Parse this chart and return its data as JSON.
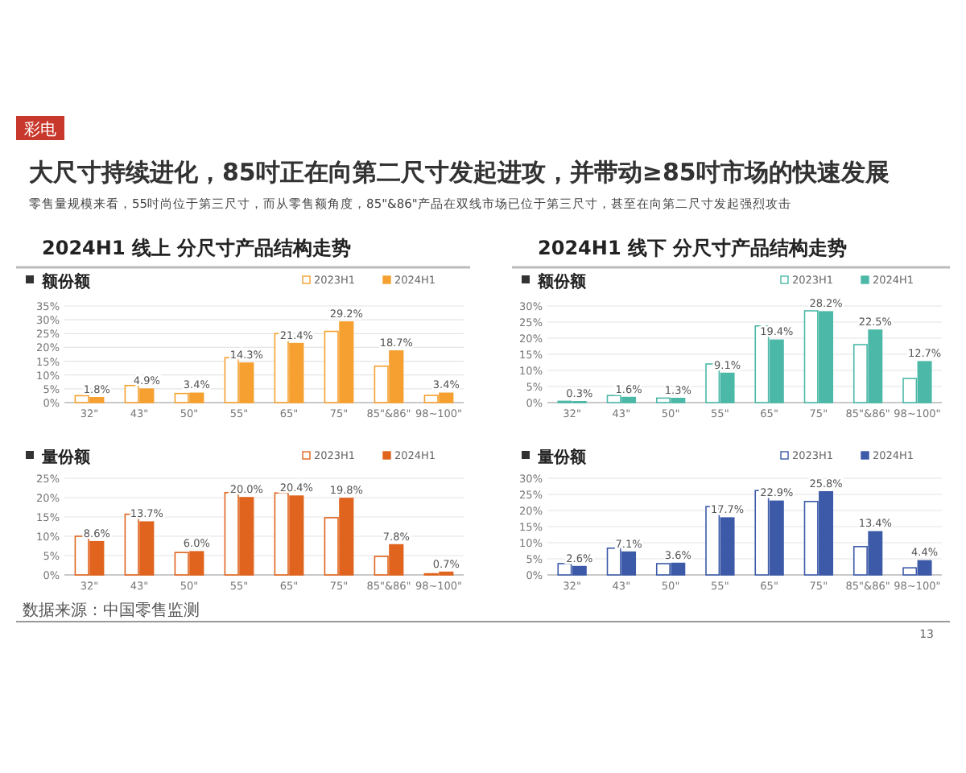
{
  "chart_data": [
    {
      "type": "other",
      "title": "大尺寸持续进化，85吋正在向第二尺寸发起进攻，并带动≥85吋市场的快速发展",
      "subtitle": "零售量规模来看，55吋尚位于第三尺寸，而从零售额角度，85\"&86\"产品在双线市场已位于第三尺寸，甚至在向第二尺寸发起强烈攻击",
      "annotations": [
        "彩电",
        "数据来源：中国零售监测",
        "13"
      ]
    },
    {
      "type": "bar",
      "title": "2024H1 线上 分尺寸产品结构走势",
      "subtitle": "额份额",
      "categories": [
        "32\"",
        "43\"",
        "50\"",
        "55\"",
        "65\"",
        "75\"",
        "85\"&86\"",
        "98~100\""
      ],
      "series": [
        {
          "name": "2023H1",
          "color": "#f5a030",
          "values": [
            2.5,
            6.2,
            3.3,
            16.3,
            25.0,
            25.8,
            13.2,
            2.6
          ]
        },
        {
          "name": "2024H1",
          "color": "#f5a030",
          "values": [
            1.8,
            4.9,
            3.4,
            14.3,
            21.4,
            29.2,
            18.7,
            3.4
          ],
          "value_labels": [
            "1.8%",
            "4.9%",
            "3.4%",
            "14.3%",
            "21.4%",
            "29.2%",
            "18.7%",
            "3.4%"
          ]
        }
      ],
      "ylim": [
        0,
        35
      ],
      "yticks": [
        {
          "value": 0,
          "label": "0%"
        },
        {
          "value": 5,
          "label": "5%"
        },
        {
          "value": 10,
          "label": "10%"
        },
        {
          "value": 15,
          "label": "15%"
        },
        {
          "value": 20,
          "label": "20%"
        },
        {
          "value": 25,
          "label": "25%"
        },
        {
          "value": 30,
          "label": "30%"
        },
        {
          "value": 35,
          "label": "35%"
        }
      ],
      "grid": "y",
      "legend": "top right"
    },
    {
      "type": "bar",
      "title": "2024H1 线下 分尺寸产品结构走势",
      "subtitle": "额份额",
      "categories": [
        "32\"",
        "43\"",
        "50\"",
        "55\"",
        "65\"",
        "75\"",
        "85\"&86\"",
        "98~100\""
      ],
      "series": [
        {
          "name": "2023H1",
          "color": "#4cb8a8",
          "values": [
            0.4,
            2.2,
            1.4,
            12.0,
            23.8,
            28.5,
            18.0,
            7.5
          ]
        },
        {
          "name": "2024H1",
          "color": "#4cb8a8",
          "values": [
            0.3,
            1.6,
            1.3,
            9.1,
            19.4,
            28.2,
            22.5,
            12.7
          ],
          "value_labels": [
            "0.3%",
            "1.6%",
            "1.3%",
            "9.1%",
            "19.4%",
            "28.2%",
            "22.5%",
            "12.7%"
          ]
        }
      ],
      "ylim": [
        0,
        30
      ],
      "yticks": [
        {
          "value": 0,
          "label": "0%"
        },
        {
          "value": 5,
          "label": "5%"
        },
        {
          "value": 10,
          "label": "10%"
        },
        {
          "value": 15,
          "label": "15%"
        },
        {
          "value": 20,
          "label": "20%"
        },
        {
          "value": 25,
          "label": "25%"
        },
        {
          "value": 30,
          "label": "30%"
        }
      ],
      "grid": "y",
      "legend": "top right"
    },
    {
      "type": "bar",
      "title": "量份额",
      "categories": [
        "32\"",
        "43\"",
        "50\"",
        "55\"",
        "65\"",
        "75\"",
        "85\"&86\"",
        "98~100\""
      ],
      "series": [
        {
          "name": "2023H1",
          "color": "#e0641e",
          "values": [
            10.0,
            15.7,
            5.8,
            21.3,
            21.2,
            14.8,
            4.8,
            0.3
          ]
        },
        {
          "name": "2024H1",
          "color": "#e0641e",
          "values": [
            8.6,
            13.7,
            6.0,
            20.0,
            20.4,
            19.8,
            7.8,
            0.7
          ],
          "value_labels": [
            "8.6%",
            "13.7%",
            "6.0%",
            "20.0%",
            "20.4%",
            "19.8%",
            "7.8%",
            "0.7%"
          ]
        }
      ],
      "ylim": [
        0,
        25
      ],
      "yticks": [
        {
          "value": 0,
          "label": "0%"
        },
        {
          "value": 5,
          "label": "5%"
        },
        {
          "value": 10,
          "label": "10%"
        },
        {
          "value": 15,
          "label": "15%"
        },
        {
          "value": 20,
          "label": "20%"
        },
        {
          "value": 25,
          "label": "25%"
        }
      ],
      "grid": "y",
      "legend": "top right"
    },
    {
      "type": "bar",
      "title": "量份额",
      "categories": [
        "32\"",
        "43\"",
        "50\"",
        "55\"",
        "65\"",
        "75\"",
        "85\"&86\"",
        "98~100\""
      ],
      "series": [
        {
          "name": "2023H1",
          "color": "#3c5aa8",
          "values": [
            3.5,
            8.3,
            3.5,
            21.2,
            26.2,
            22.8,
            8.8,
            2.2
          ]
        },
        {
          "name": "2024H1",
          "color": "#3c5aa8",
          "values": [
            2.6,
            7.1,
            3.6,
            17.7,
            22.9,
            25.8,
            13.4,
            4.4
          ],
          "value_labels": [
            "2.6%",
            "7.1%",
            "3.6%",
            "17.7%",
            "22.9%",
            "25.8%",
            "13.4%",
            "4.4%"
          ]
        }
      ],
      "ylim": [
        0,
        30
      ],
      "yticks": [
        {
          "value": 0,
          "label": "0%"
        },
        {
          "value": 5,
          "label": "5%"
        },
        {
          "value": 10,
          "label": "10%"
        },
        {
          "value": 15,
          "label": "15%"
        },
        {
          "value": 20,
          "label": "20%"
        },
        {
          "value": 25,
          "label": "25%"
        },
        {
          "value": 30,
          "label": "30%"
        }
      ],
      "grid": "y",
      "legend": "top right"
    }
  ]
}
